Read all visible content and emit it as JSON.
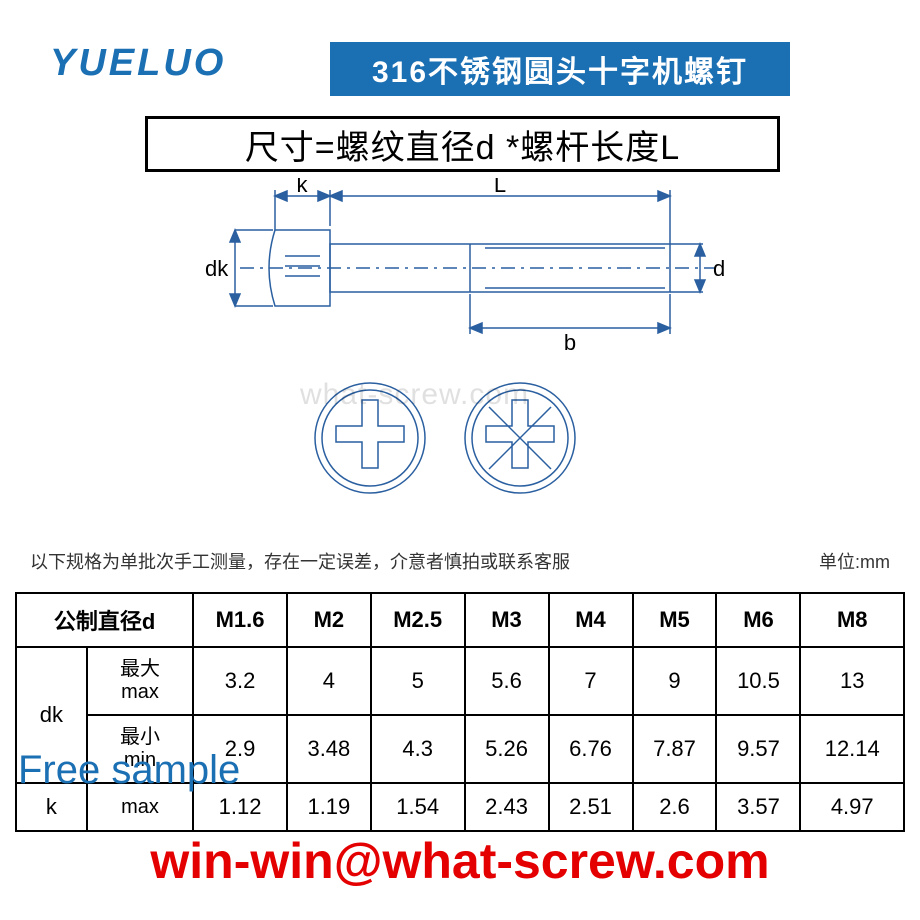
{
  "logo_text": "YUELUO",
  "title": "316不锈钢圆头十字机螺钉",
  "formula": "尺寸=螺纹直径d *螺杆长度L",
  "diagram": {
    "labels": {
      "k": "k",
      "L": "L",
      "dk": "dk",
      "d": "d",
      "b": "b"
    },
    "line_color": "#2a5fa0",
    "line_width": 1.5,
    "bg": "#ffffff"
  },
  "watermark": "what-screw.com",
  "note_left": "以下规格为单批次手工测量，存在一定误差，介意者慎拍或联系客服",
  "note_right": "单位:mm",
  "table": {
    "header_label": "公制直径d",
    "sizes": [
      "M1.6",
      "M2",
      "M2.5",
      "M3",
      "M4",
      "M5",
      "M6",
      "M8"
    ],
    "rows": [
      {
        "group": "dk",
        "sub": "最大 max",
        "values": [
          "3.2",
          "4",
          "5",
          "5.6",
          "7",
          "9",
          "10.5",
          "13"
        ]
      },
      {
        "group": "dk",
        "sub": "最小 min",
        "values": [
          "2.9",
          "3.48",
          "4.3",
          "5.26",
          "6.76",
          "7.87",
          "9.57",
          "12.14"
        ]
      },
      {
        "group": "k",
        "sub": "max",
        "values": [
          "1.12",
          "1.19",
          "1.54",
          "2.43",
          "2.51",
          "2.6",
          "3.57",
          "4.97"
        ]
      }
    ]
  },
  "free_sample": "Free sample",
  "email": "win-win@what-screw.com",
  "colors": {
    "brand_blue": "#1b6fb3",
    "email_red": "#e40000",
    "border": "#000000",
    "bg": "#ffffff"
  }
}
